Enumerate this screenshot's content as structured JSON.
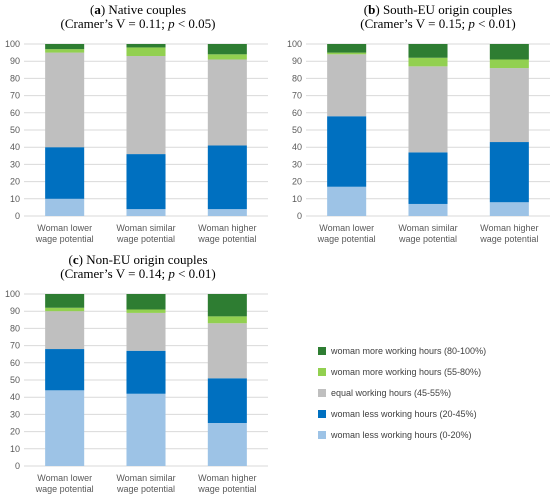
{
  "colors": {
    "s0": "#9DC3E6",
    "s1": "#0070C0",
    "s2": "#BFBFBF",
    "s3": "#92D050",
    "s4": "#2E7D32"
  },
  "legend": {
    "items": [
      "woman more working hours (80-100%)",
      "woman more working hours (55-80%)",
      "equal working hours (45-55%)",
      "woman less working hours (20-45%)",
      "woman less working hours (0-20%)"
    ]
  },
  "chart_data": [
    {
      "type": "bar",
      "stacked": true,
      "title_letter": "a",
      "title": "Native couples",
      "subtitle_main": "(Cramer's V = 0.11; ",
      "subtitle_p": "p",
      "subtitle_tail": " < 0.05)",
      "categories": [
        [
          "Woman lower",
          "wage potential"
        ],
        [
          "Woman similar",
          "wage potential"
        ],
        [
          "Woman higher",
          "wage potential"
        ]
      ],
      "ylim": [
        0,
        100
      ],
      "yticks": [
        0,
        10,
        20,
        30,
        40,
        50,
        60,
        70,
        80,
        90,
        100
      ],
      "series": [
        {
          "name": "woman less working hours (0-20%)",
          "values": [
            10,
            4,
            4
          ]
        },
        {
          "name": "woman less working hours (20-45%)",
          "values": [
            30,
            32,
            37
          ]
        },
        {
          "name": "equal working hours (45-55%)",
          "values": [
            55,
            57,
            50
          ]
        },
        {
          "name": "woman more working hours (55-80%)",
          "values": [
            2,
            5,
            3
          ]
        },
        {
          "name": "woman more working hours (80-100%)",
          "values": [
            3,
            2,
            6
          ]
        }
      ]
    },
    {
      "type": "bar",
      "stacked": true,
      "title_letter": "b",
      "title": "South-EU origin couples",
      "subtitle_main": "(Cramer's V = 0.15; ",
      "subtitle_p": "p",
      "subtitle_tail": " < 0.01)",
      "categories": [
        [
          "Woman lower",
          "wage potential"
        ],
        [
          "Woman similar",
          "wage potential"
        ],
        [
          "Woman higher",
          "wage potential"
        ]
      ],
      "ylim": [
        0,
        100
      ],
      "yticks": [
        0,
        10,
        20,
        30,
        40,
        50,
        60,
        70,
        80,
        90,
        100
      ],
      "series": [
        {
          "name": "woman less working hours (0-20%)",
          "values": [
            17,
            7,
            8
          ]
        },
        {
          "name": "woman less working hours (20-45%)",
          "values": [
            41,
            30,
            35
          ]
        },
        {
          "name": "equal working hours (45-55%)",
          "values": [
            36,
            50,
            43
          ]
        },
        {
          "name": "woman more working hours (55-80%)",
          "values": [
            1,
            5,
            5
          ]
        },
        {
          "name": "woman more working hours (80-100%)",
          "values": [
            5,
            8,
            9
          ]
        }
      ]
    },
    {
      "type": "bar",
      "stacked": true,
      "title_letter": "c",
      "title": "Non-EU origin couples",
      "subtitle_main": "(Cramer's V = 0.14; ",
      "subtitle_p": "p",
      "subtitle_tail": " < 0.01)",
      "categories": [
        [
          "Woman lower",
          "wage potential"
        ],
        [
          "Woman similar",
          "wage potential"
        ],
        [
          "Woman higher",
          "wage potential"
        ]
      ],
      "ylim": [
        0,
        100
      ],
      "yticks": [
        0,
        10,
        20,
        30,
        40,
        50,
        60,
        70,
        80,
        90,
        100
      ],
      "series": [
        {
          "name": "woman less working hours (0-20%)",
          "values": [
            44,
            42,
            25
          ]
        },
        {
          "name": "woman less working hours (20-45%)",
          "values": [
            24,
            25,
            26
          ]
        },
        {
          "name": "equal working hours (45-55%)",
          "values": [
            22,
            22,
            32
          ]
        },
        {
          "name": "woman more working hours (55-80%)",
          "values": [
            2,
            2,
            4
          ]
        },
        {
          "name": "woman more working hours (80-100%)",
          "values": [
            8,
            9,
            13
          ]
        }
      ]
    }
  ]
}
